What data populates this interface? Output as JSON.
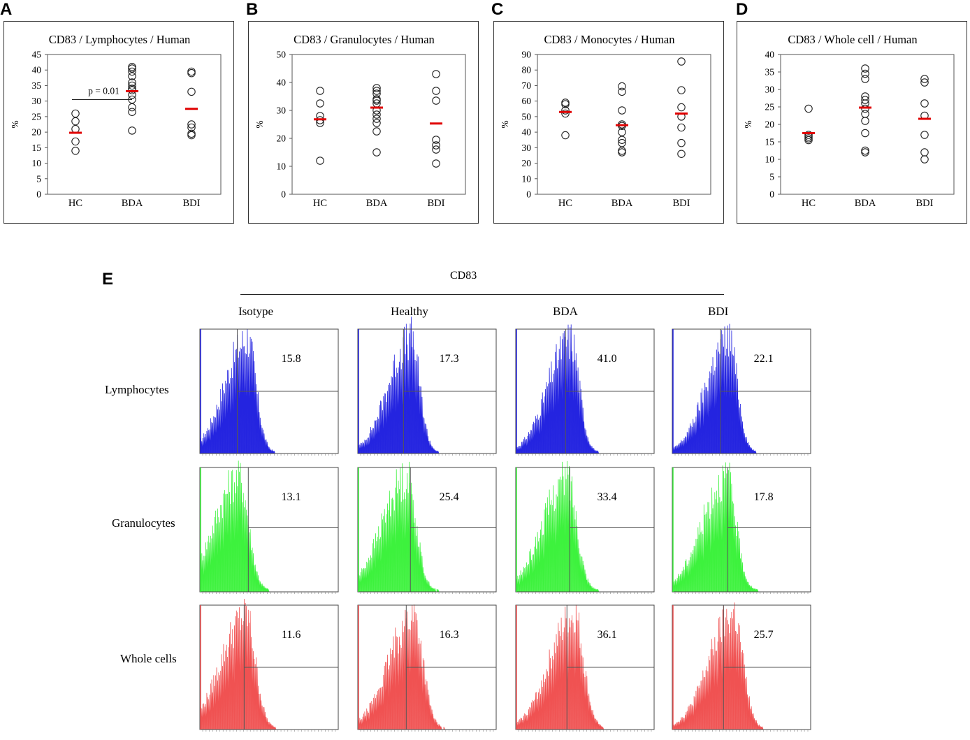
{
  "chart_data": [
    {
      "id": "A",
      "panel_letter": "A",
      "type": "scatter",
      "title": "CD83 / Lymphocytes / Human",
      "ylabel": "%",
      "categories": [
        "HC",
        "BDA",
        "BDI"
      ],
      "ylim": [
        0,
        45
      ],
      "yticks": [
        0,
        5,
        10,
        15,
        20,
        25,
        30,
        35,
        40,
        45
      ],
      "points": [
        [
          14,
          17,
          21,
          23.5,
          26
        ],
        [
          20.5,
          26.5,
          28,
          30.5,
          32,
          33.5,
          34,
          35,
          36,
          38,
          39.5,
          40.5,
          41
        ],
        [
          19,
          19.5,
          21.5,
          22.5,
          33,
          39,
          39.5
        ]
      ],
      "means": [
        19.8,
        33.2,
        27.5
      ],
      "annotation": {
        "text": "p = 0.01",
        "from": "HC",
        "to": "BDA",
        "y": 30.5
      }
    },
    {
      "id": "B",
      "panel_letter": "B",
      "type": "scatter",
      "title": "CD83 / Granulocytes / Human",
      "ylabel": "%",
      "categories": [
        "HC",
        "BDA",
        "BDI"
      ],
      "ylim": [
        0,
        50
      ],
      "yticks": [
        0,
        10,
        20,
        30,
        40,
        50
      ],
      "points": [
        [
          12,
          25.5,
          26.5,
          28,
          32.5,
          37
        ],
        [
          15,
          22.5,
          25.5,
          27,
          28.5,
          30,
          32.5,
          33.5,
          34,
          36,
          37,
          38
        ],
        [
          11,
          16,
          17.5,
          19.5,
          33.5,
          37,
          43
        ]
      ],
      "means": [
        26.8,
        31,
        25.3
      ],
      "annotation": null
    },
    {
      "id": "C",
      "panel_letter": "C",
      "type": "scatter",
      "title": "CD83 / Monocytes / Human",
      "ylabel": "%",
      "categories": [
        "HC",
        "BDA",
        "BDI"
      ],
      "ylim": [
        0,
        90
      ],
      "yticks": [
        0,
        10,
        20,
        30,
        40,
        50,
        60,
        70,
        80,
        90
      ],
      "points": [
        [
          38,
          52,
          54,
          58,
          59
        ],
        [
          27,
          28,
          33,
          35,
          40,
          44,
          45,
          54,
          66,
          69.5
        ],
        [
          26,
          33,
          43,
          50,
          56,
          67,
          85.5
        ]
      ],
      "means": [
        53,
        44.5,
        52
      ],
      "annotation": null
    },
    {
      "id": "D",
      "panel_letter": "D",
      "type": "scatter",
      "title": "CD83 / Whole cell  / Human",
      "ylabel": "%",
      "categories": [
        "HC",
        "BDA",
        "BDI"
      ],
      "ylim": [
        0,
        40
      ],
      "yticks": [
        0,
        5,
        10,
        15,
        20,
        25,
        30,
        35,
        40
      ],
      "points": [
        [
          15.5,
          16,
          16.5,
          17,
          24.5
        ],
        [
          12,
          12.5,
          17.5,
          21,
          23,
          24.5,
          26,
          27,
          28,
          33,
          34.5,
          36
        ],
        [
          10,
          12,
          17,
          22.5,
          26,
          32,
          33
        ]
      ],
      "means": [
        17.5,
        24.8,
        21.6
      ],
      "annotation": null
    }
  ],
  "flow": {
    "panel_letter": "E",
    "header": "CD83",
    "columns": [
      "Isotype",
      "Healthy",
      "BDA",
      "BDI"
    ],
    "rows": [
      {
        "label": "Lymphocytes",
        "color": "#2424e0",
        "values": [
          "15.8",
          "17.3",
          "41.0",
          "22.1"
        ]
      },
      {
        "label": "Granulocytes",
        "color": "#3df23d",
        "values": [
          "13.1",
          "25.4",
          "33.4",
          "17.8"
        ]
      },
      {
        "label": "Whole cells",
        "color": "#f05252",
        "values": [
          "11.6",
          "16.3",
          "36.1",
          "25.7"
        ]
      }
    ]
  }
}
